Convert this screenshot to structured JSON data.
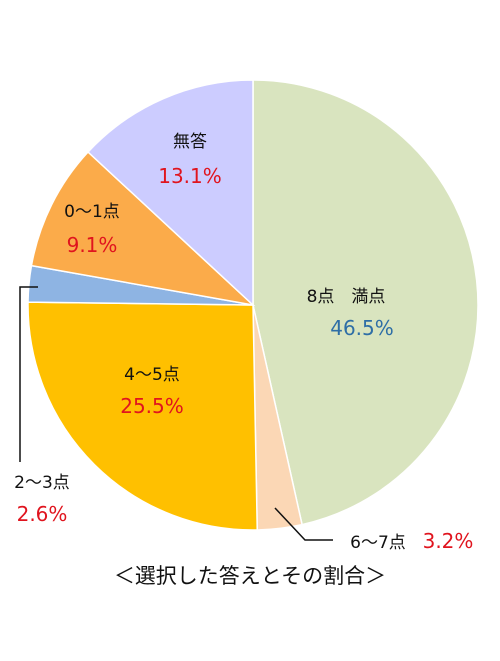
{
  "chart_data": {
    "type": "pie",
    "caption": "＜選択した答えとその割合＞",
    "direction": "clockwise from 12 o'clock",
    "slices": [
      {
        "label": "8点　満点",
        "value": 46.5,
        "value_text": "46.5%",
        "color": "#d9e4bf",
        "value_color": "#2e6ea6"
      },
      {
        "label": "6〜7点",
        "value": 3.2,
        "value_text": "3.2%",
        "color": "#fbd7b5",
        "value_color": "#e0141e"
      },
      {
        "label": "4〜5点",
        "value": 25.5,
        "value_text": "25.5%",
        "color": "#ffc000",
        "value_color": "#e0141e"
      },
      {
        "label": "2〜3点",
        "value": 2.6,
        "value_text": "2.6%",
        "color": "#8eb4e3",
        "value_color": "#e0141e"
      },
      {
        "label": "0〜1点",
        "value": 9.1,
        "value_text": "9.1%",
        "color": "#fbab4a",
        "value_color": "#e0141e"
      },
      {
        "label": "無答",
        "value": 13.1,
        "value_text": "13.1%",
        "color": "#ccccff",
        "value_color": "#e0141e"
      }
    ]
  }
}
